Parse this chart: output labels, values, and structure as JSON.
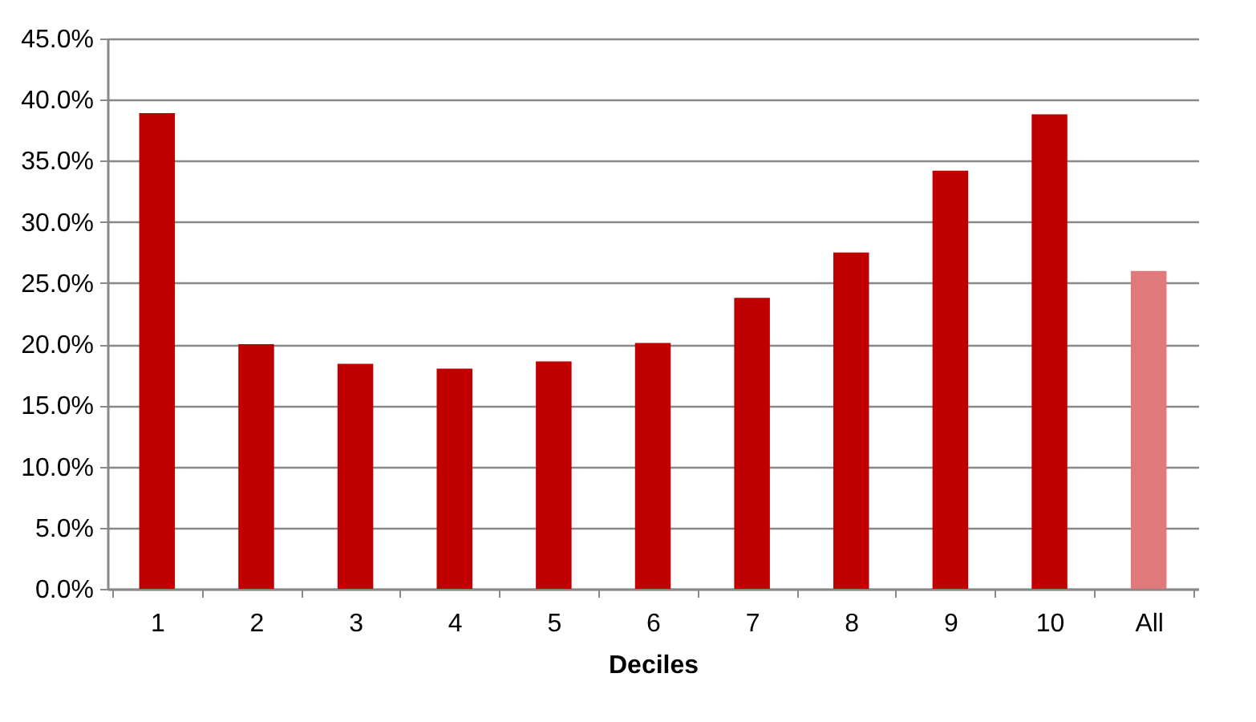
{
  "chart_data": {
    "type": "bar",
    "xlabel": "Deciles",
    "categories": [
      "1",
      "2",
      "3",
      "4",
      "5",
      "6",
      "7",
      "8",
      "9",
      "10",
      "All"
    ],
    "values": [
      38.9,
      20.0,
      18.4,
      18.0,
      18.6,
      20.1,
      23.8,
      27.5,
      34.2,
      38.8,
      26.0
    ],
    "colors": [
      "#c00000",
      "#c00000",
      "#c00000",
      "#c00000",
      "#c00000",
      "#c00000",
      "#c00000",
      "#c00000",
      "#c00000",
      "#c00000",
      "#e07a7a"
    ],
    "ylim": [
      0,
      45
    ],
    "yticks": [
      {
        "value": 0,
        "label": "0.0%"
      },
      {
        "value": 5,
        "label": "5.0%"
      },
      {
        "value": 10,
        "label": "10.0%"
      },
      {
        "value": 15,
        "label": "15.0%"
      },
      {
        "value": 20,
        "label": "20.0%"
      },
      {
        "value": 25,
        "label": "25.0%"
      },
      {
        "value": 30,
        "label": "30.0%"
      },
      {
        "value": 35,
        "label": "35.0%"
      },
      {
        "value": 40,
        "label": "40.0%"
      },
      {
        "value": 45,
        "label": "45.0%"
      }
    ],
    "grid": "y",
    "legend": false
  }
}
